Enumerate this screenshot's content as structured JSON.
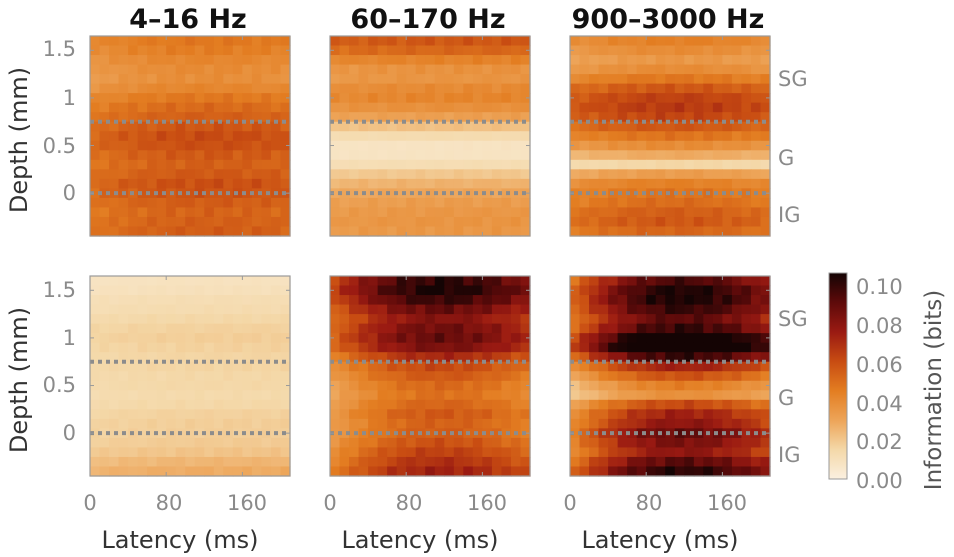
{
  "chart_data": {
    "type": "heatmap",
    "titles": [
      "4–16 Hz",
      "60–170 Hz",
      "900–3000 Hz"
    ],
    "xlabel": "Latency (ms)",
    "ylabel": "Depth (mm)",
    "x_ticks": [
      "0",
      "80",
      "160"
    ],
    "y_ticks": [
      "1.5",
      "1",
      "0.5",
      "0"
    ],
    "xlim": [
      0,
      210
    ],
    "ylim": [
      -0.45,
      1.65
    ],
    "layer_labels": [
      "SG",
      "G",
      "IG"
    ],
    "boundary_depths_mm": [
      0.75,
      0
    ],
    "colorbar": {
      "label": "Information (bits)",
      "ticks": [
        "0.10",
        "0.08",
        "0.06",
        "0.04",
        "0.02",
        "0.00"
      ],
      "range": [
        0,
        0.105
      ],
      "colors": [
        "#fbf0e0",
        "#f4d8a8",
        "#eda458",
        "#e37d21",
        "#c84c12",
        "#9a1a12",
        "#5e0a0a",
        "#140404"
      ]
    },
    "latency_bins_ms": [
      5,
      15,
      25,
      35,
      45,
      55,
      65,
      75,
      85,
      95,
      105,
      115,
      125,
      135,
      145,
      155,
      165,
      175,
      185,
      195,
      205
    ],
    "depth_bins_mm": [
      1.6,
      1.5,
      1.4,
      1.3,
      1.2,
      1.1,
      1.0,
      0.9,
      0.8,
      0.7,
      0.6,
      0.5,
      0.4,
      0.3,
      0.2,
      0.1,
      0.0,
      -0.1,
      -0.2,
      -0.3,
      -0.4
    ],
    "panels": [
      {
        "row": 0,
        "band": "4–16 Hz",
        "depth_profile": [
          0.045,
          0.043,
          0.04,
          0.038,
          0.037,
          0.04,
          0.045,
          0.049,
          0.052,
          0.055,
          0.058,
          0.057,
          0.054,
          0.052,
          0.054,
          0.057,
          0.056,
          0.053,
          0.051,
          0.052,
          0.053
        ],
        "latency_mod": [
          -0.1,
          0.05
        ]
      },
      {
        "row": 0,
        "band": "60–170 Hz",
        "depth_profile": [
          0.057,
          0.052,
          0.043,
          0.037,
          0.036,
          0.04,
          0.042,
          0.038,
          0.032,
          0.022,
          0.013,
          0.008,
          0.008,
          0.012,
          0.02,
          0.026,
          0.03,
          0.033,
          0.035,
          0.036,
          0.035
        ],
        "latency_mod": [
          -0.05,
          0.0
        ]
      },
      {
        "row": 0,
        "band": "900–3000 Hz",
        "depth_profile": [
          0.04,
          0.036,
          0.032,
          0.036,
          0.043,
          0.052,
          0.058,
          0.06,
          0.057,
          0.052,
          0.044,
          0.036,
          0.026,
          0.014,
          0.03,
          0.04,
          0.044,
          0.046,
          0.05,
          0.052,
          0.048
        ],
        "latency_mod": [
          -0.05,
          0.1
        ]
      },
      {
        "row": 1,
        "band": "4–16 Hz",
        "depth_profile": [
          0.009,
          0.01,
          0.012,
          0.013,
          0.015,
          0.017,
          0.018,
          0.017,
          0.016,
          0.016,
          0.015,
          0.015,
          0.014,
          0.015,
          0.017,
          0.018,
          0.018,
          0.019,
          0.021,
          0.025,
          0.028
        ],
        "latency_mod": [
          -0.1,
          0.0
        ]
      },
      {
        "row": 1,
        "band": "60–170 Hz",
        "depth_profile": [
          0.082,
          0.085,
          0.08,
          0.072,
          0.066,
          0.07,
          0.072,
          0.068,
          0.058,
          0.05,
          0.046,
          0.042,
          0.04,
          0.043,
          0.046,
          0.044,
          0.045,
          0.048,
          0.052,
          0.056,
          0.06
        ],
        "latency_mod": [
          -0.25,
          0.25
        ]
      },
      {
        "row": 1,
        "band": "900–3000 Hz",
        "depth_profile": [
          0.075,
          0.082,
          0.083,
          0.078,
          0.072,
          0.078,
          0.092,
          0.098,
          0.078,
          0.058,
          0.046,
          0.035,
          0.03,
          0.048,
          0.058,
          0.062,
          0.07,
          0.066,
          0.062,
          0.072,
          0.08
        ],
        "latency_mod": [
          -0.35,
          0.3
        ]
      }
    ]
  }
}
